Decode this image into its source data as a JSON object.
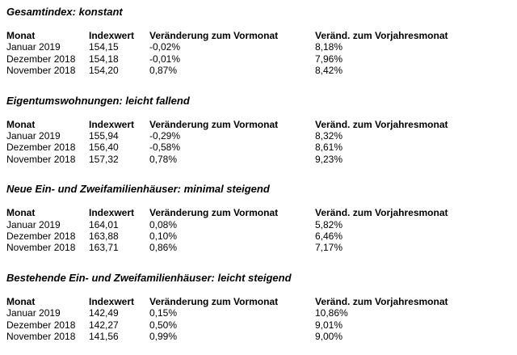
{
  "columns": {
    "monat": "Monat",
    "indexwert": "Indexwert",
    "vormonat": "Veränderung zum Vormonat",
    "vorjahr": "Veränd. zum Vorjahresmonat"
  },
  "sections": [
    {
      "title": "Gesamtindex: konstant",
      "rows": [
        {
          "monat": "Januar 2019",
          "indexwert": "154,15",
          "vormonat": "-0,02%",
          "vorjahr": "8,18%"
        },
        {
          "monat": "Dezember 2018",
          "indexwert": "154,18",
          "vormonat": "-0,01%",
          "vorjahr": "7,96%"
        },
        {
          "monat": "November 2018",
          "indexwert": "154,20",
          "vormonat": "0,87%",
          "vorjahr": "8,42%"
        }
      ]
    },
    {
      "title": "Eigentumswohnungen: leicht fallend",
      "rows": [
        {
          "monat": "Januar 2019",
          "indexwert": "155,94",
          "vormonat": "-0,29%",
          "vorjahr": "8,32%"
        },
        {
          "monat": "Dezember 2018",
          "indexwert": "156,40",
          "vormonat": "-0,58%",
          "vorjahr": "8,61%"
        },
        {
          "monat": "November 2018",
          "indexwert": "157,32",
          "vormonat": "0,78%",
          "vorjahr": "9,23%"
        }
      ]
    },
    {
      "title": "Neue Ein- und Zweifamilienhäuser: minimal steigend",
      "rows": [
        {
          "monat": "Januar 2019",
          "indexwert": "164,01",
          "vormonat": "0,08%",
          "vorjahr": "5,82%"
        },
        {
          "monat": "Dezember 2018",
          "indexwert": "163,88",
          "vormonat": "0,10%",
          "vorjahr": "6,46%"
        },
        {
          "monat": "November 2018",
          "indexwert": "163,71",
          "vormonat": "0,86%",
          "vorjahr": "7,17%"
        }
      ]
    },
    {
      "title": "Bestehende Ein- und Zweifamilienhäuser: leicht steigend",
      "rows": [
        {
          "monat": "Januar 2019",
          "indexwert": "142,49",
          "vormonat": "0,15%",
          "vorjahr": "10,86%"
        },
        {
          "monat": "Dezember 2018",
          "indexwert": "142,27",
          "vormonat": "0,50%",
          "vorjahr": "9,01%"
        },
        {
          "monat": "November 2018",
          "indexwert": "141,56",
          "vormonat": "0,99%",
          "vorjahr": "9,00%"
        }
      ]
    }
  ]
}
